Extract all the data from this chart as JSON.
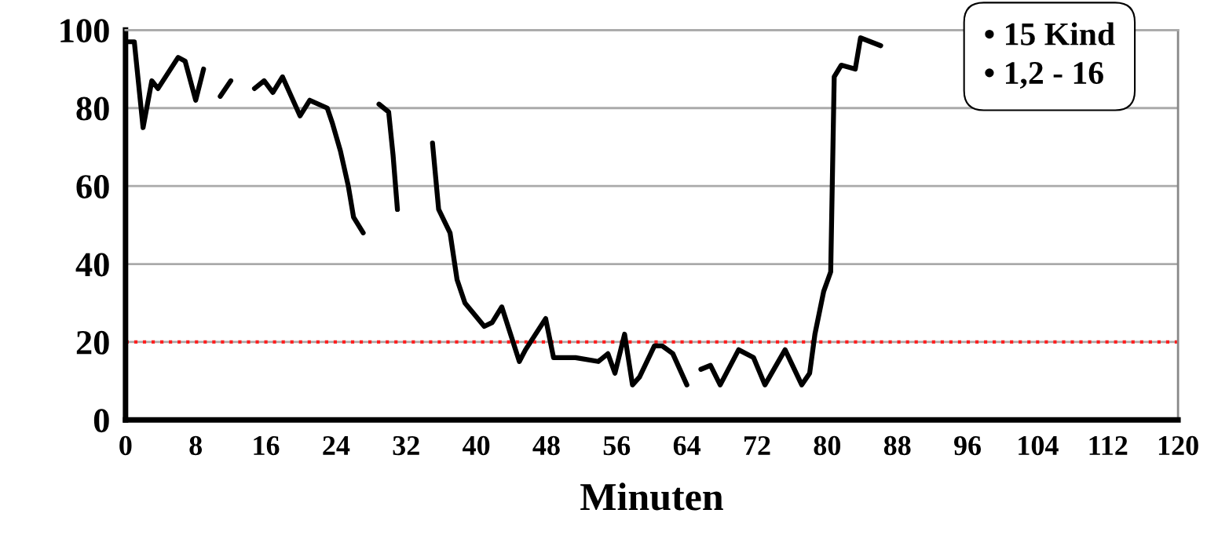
{
  "chart_data": {
    "type": "line",
    "xlabel": "Minuten",
    "xlim": [
      0,
      120
    ],
    "xticks": [
      0,
      8,
      16,
      24,
      32,
      40,
      48,
      56,
      64,
      72,
      80,
      88,
      96,
      104,
      112,
      120
    ],
    "ylim": [
      0,
      100
    ],
    "yticks": [
      0,
      20,
      40,
      60,
      80,
      100
    ],
    "grid": "y",
    "legend": false,
    "marker": "none",
    "line_style": "solid",
    "series": [
      {
        "color": "#000000",
        "x": [
          0,
          1,
          2,
          3,
          3.7,
          6,
          6.8,
          8,
          8.9,
          9.5,
          10.8,
          12,
          13,
          14.7,
          15.8,
          16.8,
          17.9,
          19.9,
          21,
          23,
          23.6,
          24.5,
          25.4,
          26,
          27.1,
          28,
          28.9,
          30,
          30.5,
          31,
          33,
          35,
          35.7,
          37,
          37.8,
          38.7,
          40.9,
          41.8,
          42.9,
          44.9,
          45.6,
          47.9,
          48.8,
          51.3,
          53.9,
          55,
          55.8,
          56.9,
          57.8,
          58.6,
          60.3,
          61.2,
          62.4,
          64,
          64.8,
          65.6,
          66.7,
          67.8,
          69.9,
          71.6,
          72.9,
          75.2,
          77.1,
          78,
          78.6,
          79.6,
          80.4,
          80.8,
          81.6,
          83.2,
          83.8,
          86.1
        ],
        "values": [
          97,
          97,
          75,
          87,
          85,
          93,
          92,
          82,
          90,
          null,
          83,
          87,
          null,
          85,
          87,
          84,
          88,
          78,
          82,
          80,
          76,
          69,
          60,
          52,
          48,
          null,
          81,
          79,
          68,
          54,
          null,
          71,
          54,
          48,
          36,
          30,
          24,
          25,
          29,
          15,
          18,
          26,
          16,
          16,
          15,
          17,
          12,
          22,
          9,
          11,
          19,
          19,
          17,
          9,
          null,
          13,
          14,
          9,
          18,
          16,
          9,
          18,
          9,
          12,
          22,
          33,
          38,
          88,
          91,
          90,
          98,
          96
        ]
      }
    ],
    "ref_lines": [
      {
        "axis": "y",
        "value": 20,
        "color": "#ff2020",
        "line_style": "dotted"
      }
    ],
    "annotations": [
      "• 15 Kind",
      "• 1,2 - 16"
    ]
  }
}
